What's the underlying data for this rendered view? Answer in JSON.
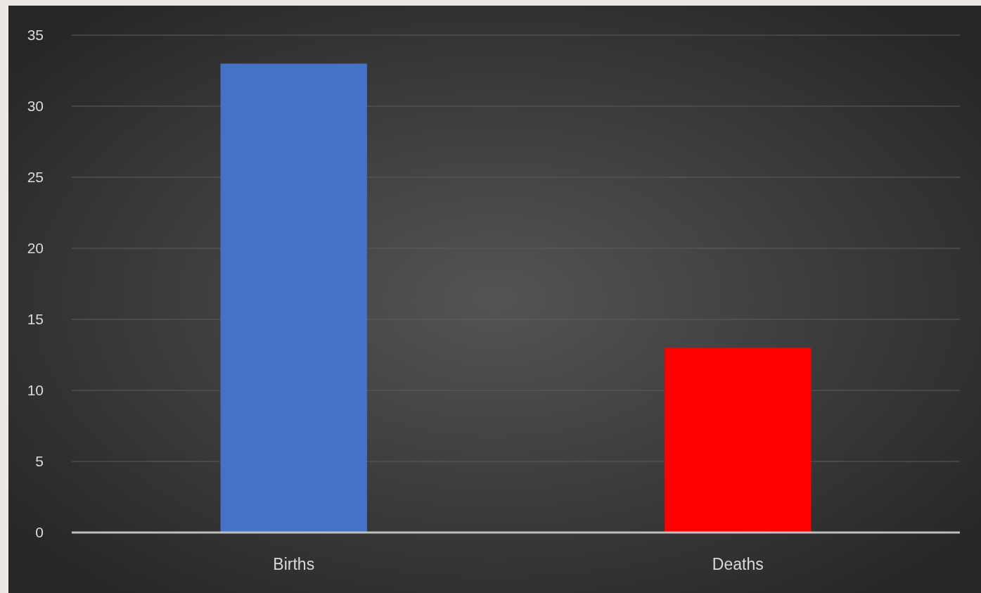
{
  "chart_data": {
    "type": "bar",
    "categories": [
      "Births",
      "Deaths"
    ],
    "values": [
      33,
      13
    ],
    "colors": [
      "#4472c4",
      "#ff0000"
    ],
    "ylim": [
      0,
      35
    ],
    "yticks": [
      0,
      5,
      10,
      15,
      20,
      25,
      30,
      35
    ],
    "grid": "y"
  }
}
